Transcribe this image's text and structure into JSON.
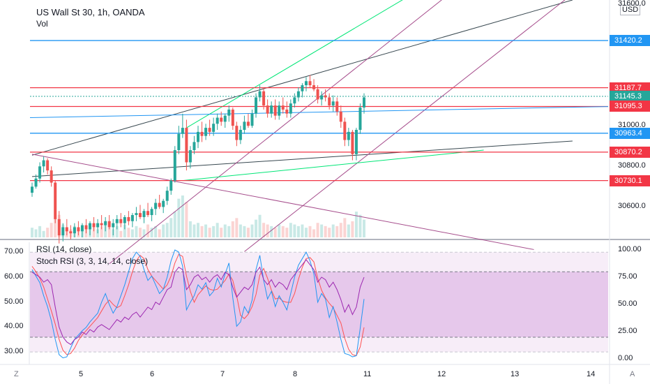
{
  "legend": {
    "main_title": "US Wall St 30, 1h, OANDA",
    "volume_label": "Vol",
    "rsi_label": "RSI (14, close)",
    "stoch_label": "Stoch RSI (3, 3, 14, 14, close)"
  },
  "currency": "USD",
  "corner_left": "Z",
  "corner_right": "A",
  "colors": {
    "up": "#26a69a",
    "down": "#ef5350",
    "hline_red": "#f23645",
    "hline_blue": "#2196f3",
    "rsi": "#9c27b0",
    "stoch_k": "#2196f3",
    "stoch_d": "#ff5252",
    "band": "#e1bee7",
    "trend_green": "#00e676",
    "trend_dark": "#37474f",
    "trend_purple": "#a64d8c"
  },
  "chart_data": {
    "type": "candlestick",
    "price_axis": {
      "range": [
        30450,
        31620
      ],
      "ticks": [
        "31600.0",
        "31000.0",
        "30800.0",
        "30600.0"
      ]
    },
    "price_markers": [
      {
        "value": 31420.2,
        "label": "31420.2",
        "color": "#2196f3"
      },
      {
        "value": 31187.7,
        "label": "31187.7",
        "color": "#f23645"
      },
      {
        "value": 31145.3,
        "label": "31145.3",
        "color": "#26a69a"
      },
      {
        "value": 31095.3,
        "label": "31095.3",
        "color": "#f23645"
      },
      {
        "value": 30963.4,
        "label": "30963.4",
        "color": "#2196f3"
      },
      {
        "value": 30870.2,
        "label": "30870.2",
        "color": "#f23645"
      },
      {
        "value": 30730.1,
        "label": "30730.1",
        "color": "#f23645"
      }
    ],
    "x_axis": {
      "ticks": [
        "5",
        "6",
        "7",
        "8",
        "11",
        "12",
        "13",
        "14"
      ]
    },
    "candles": [
      [
        30670,
        30720,
        30650,
        30700
      ],
      [
        30700,
        30760,
        30690,
        30740
      ],
      [
        30740,
        30820,
        30720,
        30800
      ],
      [
        30800,
        30850,
        30770,
        30830
      ],
      [
        30830,
        30840,
        30760,
        30780
      ],
      [
        30780,
        30800,
        30700,
        30720
      ],
      [
        30720,
        30730,
        30520,
        30540
      ],
      [
        30540,
        30580,
        30420,
        30460
      ],
      [
        30460,
        30520,
        30430,
        30500
      ],
      [
        30500,
        30540,
        30460,
        30480
      ],
      [
        30480,
        30510,
        30440,
        30470
      ],
      [
        30470,
        30520,
        30450,
        30500
      ],
      [
        30500,
        30530,
        30460,
        30480
      ],
      [
        30480,
        30520,
        30450,
        30510
      ],
      [
        30510,
        30540,
        30470,
        30490
      ],
      [
        30490,
        30530,
        30460,
        30520
      ],
      [
        30520,
        30550,
        30480,
        30500
      ],
      [
        30500,
        30540,
        30470,
        30520
      ],
      [
        30520,
        30560,
        30490,
        30510
      ],
      [
        30510,
        30550,
        30480,
        30530
      ],
      [
        30530,
        30560,
        30490,
        30500
      ],
      [
        30500,
        30540,
        30460,
        30520
      ],
      [
        30520,
        30560,
        30490,
        30540
      ],
      [
        30540,
        30570,
        30500,
        30520
      ],
      [
        30520,
        30560,
        30490,
        30550
      ],
      [
        30550,
        30580,
        30510,
        30530
      ],
      [
        30530,
        30570,
        30500,
        30560
      ],
      [
        30560,
        30600,
        30530,
        30570
      ],
      [
        30570,
        30610,
        30540,
        30550
      ],
      [
        30550,
        30590,
        30520,
        30580
      ],
      [
        30580,
        30620,
        30550,
        30560
      ],
      [
        30560,
        30600,
        30530,
        30590
      ],
      [
        30590,
        30640,
        30560,
        30620
      ],
      [
        30620,
        30660,
        30590,
        30600
      ],
      [
        30600,
        30640,
        30570,
        30630
      ],
      [
        30630,
        30700,
        30610,
        30680
      ],
      [
        30680,
        30740,
        30660,
        30730
      ],
      [
        30730,
        30900,
        30720,
        30880
      ],
      [
        30880,
        31000,
        30860,
        30960
      ],
      [
        30960,
        31060,
        30940,
        30990
      ],
      [
        30990,
        31030,
        30780,
        30820
      ],
      [
        30820,
        30900,
        30790,
        30880
      ],
      [
        30880,
        30950,
        30860,
        30920
      ],
      [
        30920,
        31000,
        30890,
        30970
      ],
      [
        30970,
        31020,
        30920,
        30950
      ],
      [
        30950,
        31010,
        30930,
        30990
      ],
      [
        30990,
        31030,
        30950,
        30970
      ],
      [
        30970,
        31040,
        30950,
        31010
      ],
      [
        31010,
        31060,
        30980,
        31040
      ],
      [
        31040,
        31070,
        31000,
        31020
      ],
      [
        31020,
        31060,
        30990,
        31050
      ],
      [
        31050,
        31100,
        31020,
        31080
      ],
      [
        31080,
        31090,
        30980,
        31000
      ],
      [
        31000,
        31020,
        30900,
        30930
      ],
      [
        30930,
        31000,
        30910,
        30980
      ],
      [
        30980,
        31050,
        30960,
        31020
      ],
      [
        31020,
        31060,
        30990,
        31000
      ],
      [
        31000,
        31080,
        30990,
        31060
      ],
      [
        31060,
        31160,
        31040,
        31140
      ],
      [
        31140,
        31200,
        31120,
        31170
      ],
      [
        31170,
        31190,
        31080,
        31100
      ],
      [
        31100,
        31130,
        31040,
        31060
      ],
      [
        31060,
        31120,
        31040,
        31100
      ],
      [
        31100,
        31130,
        31030,
        31050
      ],
      [
        31050,
        31120,
        31030,
        31100
      ],
      [
        31100,
        31140,
        31060,
        31080
      ],
      [
        31080,
        31120,
        31040,
        31060
      ],
      [
        31060,
        31130,
        31040,
        31110
      ],
      [
        31110,
        31160,
        31090,
        31140
      ],
      [
        31140,
        31190,
        31120,
        31170
      ],
      [
        31170,
        31210,
        31140,
        31200
      ],
      [
        31200,
        31240,
        31170,
        31220
      ],
      [
        31220,
        31250,
        31190,
        31200
      ],
      [
        31200,
        31230,
        31170,
        31180
      ],
      [
        31180,
        31200,
        31110,
        31130
      ],
      [
        31130,
        31170,
        31100,
        31150
      ],
      [
        31150,
        31180,
        31120,
        31140
      ],
      [
        31140,
        31160,
        31080,
        31100
      ],
      [
        31100,
        31150,
        31070,
        31120
      ],
      [
        31120,
        31140,
        31050,
        31070
      ],
      [
        31070,
        31100,
        30990,
        31020
      ],
      [
        31020,
        31040,
        30900,
        30930
      ],
      [
        30930,
        30990,
        30900,
        30970
      ],
      [
        30970,
        30980,
        30830,
        30860
      ],
      [
        30860,
        30990,
        30830,
        30980
      ],
      [
        30980,
        31110,
        30960,
        31090
      ],
      [
        31090,
        31160,
        31060,
        31140
      ]
    ],
    "volume": [
      6,
      5,
      7,
      4,
      6,
      9,
      12,
      14,
      8,
      6,
      5,
      7,
      4,
      6,
      5,
      8,
      6,
      5,
      7,
      9,
      6,
      5,
      7,
      4,
      8,
      6,
      5,
      7,
      6,
      5,
      8,
      6,
      7,
      5,
      8,
      9,
      12,
      16,
      24,
      26,
      22,
      10,
      8,
      9,
      7,
      8,
      6,
      7,
      9,
      6,
      8,
      7,
      10,
      12,
      8,
      7,
      6,
      8,
      11,
      14,
      9,
      8,
      7,
      6,
      8,
      7,
      6,
      9,
      8,
      7,
      8,
      6,
      7,
      5,
      9,
      8,
      7,
      6,
      8,
      7,
      9,
      12,
      8,
      10,
      16,
      14,
      11
    ],
    "rsi_axis": {
      "range": [
        25,
        74
      ],
      "ticks": [
        "70.00",
        "60.00",
        "50.00",
        "40.00",
        "30.00"
      ],
      "band": [
        30,
        70
      ]
    },
    "stoch_axis": {
      "range": [
        -5,
        107
      ],
      "ticks": [
        "100.00",
        "75.00",
        "50.00",
        "25.00",
        "0.00"
      ],
      "band": [
        20,
        80
      ]
    },
    "rsi": [
      62,
      61,
      60,
      58,
      59,
      57,
      48,
      40,
      36,
      34,
      33,
      35,
      36,
      38,
      37,
      39,
      38,
      40,
      41,
      40,
      39,
      41,
      43,
      42,
      44,
      43,
      45,
      46,
      44,
      46,
      48,
      47,
      50,
      49,
      52,
      55,
      56,
      62,
      64,
      63,
      55,
      57,
      60,
      61,
      59,
      60,
      58,
      60,
      61,
      59,
      62,
      61,
      56,
      52,
      54,
      56,
      55,
      57,
      62,
      64,
      59,
      57,
      59,
      56,
      58,
      57,
      55,
      59,
      61,
      63,
      65,
      67,
      65,
      63,
      58,
      60,
      59,
      56,
      58,
      55,
      51,
      46,
      49,
      45,
      48,
      56,
      60
    ],
    "stoch_k": [
      82,
      76,
      70,
      58,
      48,
      35,
      18,
      4,
      1,
      2,
      10,
      18,
      22,
      26,
      29,
      34,
      38,
      42,
      52,
      60,
      50,
      42,
      48,
      58,
      68,
      80,
      92,
      98,
      94,
      82,
      72,
      76,
      68,
      60,
      64,
      75,
      90,
      100,
      98,
      85,
      45,
      52,
      58,
      68,
      64,
      70,
      58,
      62,
      74,
      66,
      78,
      88,
      56,
      30,
      34,
      48,
      42,
      54,
      82,
      95,
      72,
      55,
      62,
      48,
      58,
      52,
      45,
      60,
      75,
      86,
      92,
      98,
      90,
      78,
      52,
      60,
      55,
      38,
      48,
      34,
      18,
      5,
      4,
      2,
      3,
      28,
      55
    ],
    "stoch_d": [
      85,
      80,
      74,
      66,
      55,
      44,
      32,
      18,
      8,
      4,
      5,
      10,
      17,
      22,
      26,
      30,
      34,
      38,
      44,
      50,
      54,
      50,
      47,
      49,
      58,
      68,
      80,
      90,
      95,
      92,
      82,
      76,
      72,
      68,
      64,
      68,
      76,
      88,
      96,
      94,
      76,
      62,
      52,
      59,
      63,
      67,
      64,
      63,
      64,
      68,
      72,
      78,
      72,
      58,
      40,
      37,
      41,
      48,
      59,
      77,
      83,
      74,
      63,
      55,
      56,
      53,
      52,
      52,
      60,
      73,
      84,
      92,
      93,
      89,
      74,
      63,
      56,
      51,
      47,
      40,
      33,
      19,
      9,
      4,
      3,
      11,
      29
    ]
  }
}
